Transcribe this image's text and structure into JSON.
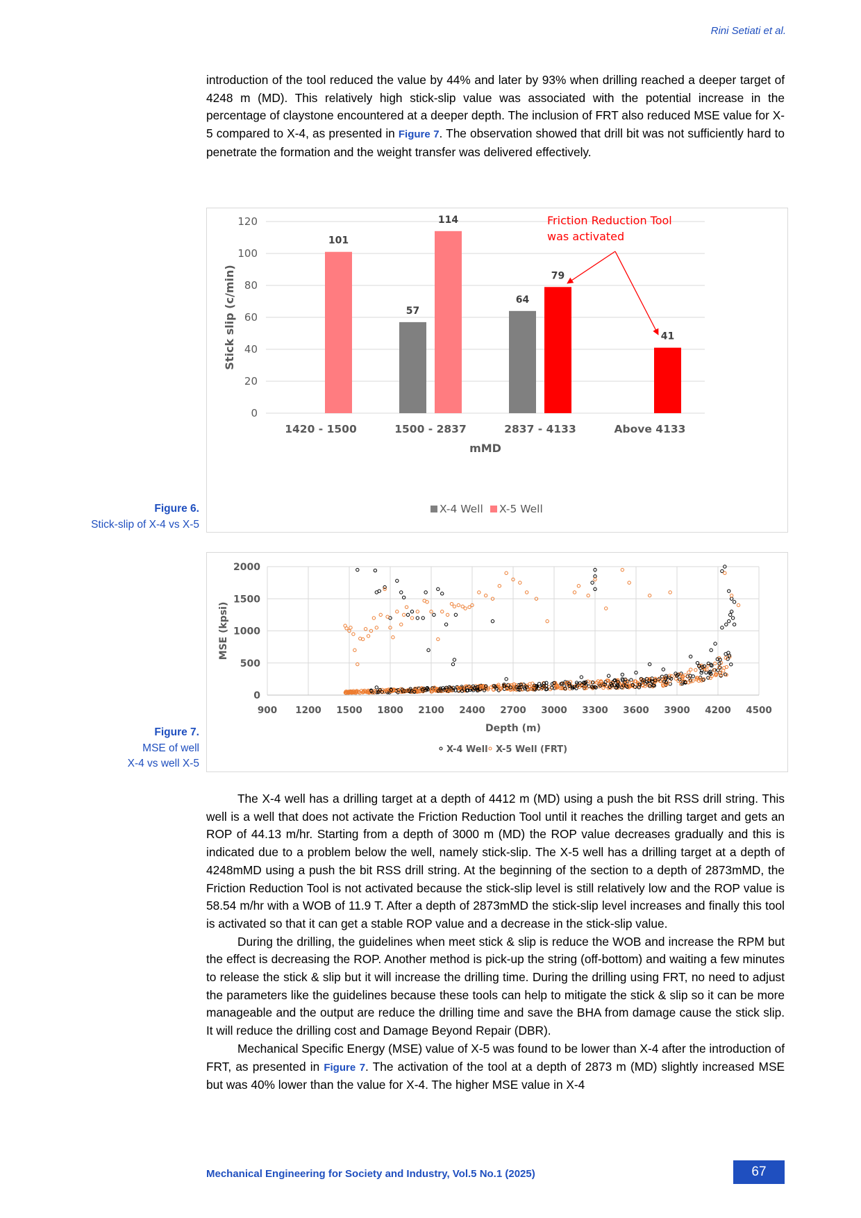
{
  "header": {
    "author": "Rini Setiati et al."
  },
  "paragraphs_top": [
    "introduction of the tool reduced the value by 44% and later by 93% when drilling reached a deeper target of 4248 m (MD). This relatively high stick-slip value was associated with the potential increase in the percentage of claystone encountered at a deeper depth. The inclusion of FRT also reduced MSE value for X-5 compared to X-4, as presented in ",
    "Figure 7",
    ". The observation showed that drill bit was not sufficiently hard to penetrate the formation and the weight transfer was delivered effectively."
  ],
  "figure6": {
    "caption_num": "Figure 6.",
    "caption_text": "Stick-slip of X-4 vs X-5"
  },
  "figure7": {
    "caption_num": "Figure 7.",
    "caption_line1": "MSE of well",
    "caption_line2": "X-4 vs well X-5"
  },
  "paragraph_x4": "The X-4 well has a drilling target at a depth of 4412 m (MD) using a push the bit RSS drill string. This well is a well that does not activate the Friction Reduction Tool until it reaches the drilling target and gets an ROP of 44.13 m/hr. Starting from a depth of 3000 m (MD) the ROP value decreases gradually and this is indicated due to a problem below the well, namely stick-slip. The X-5 well has a drilling target at a depth of 4248mMD using a push the bit RSS drill string. At the beginning of the section to a depth of 2873mMD, the Friction Reduction Tool is not activated because the stick-slip level is still relatively low and the ROP value is 58.54 m/hr with a WOB of 11.9 T. After a depth of 2873mMD the stick-slip level increases and finally this tool is activated so that it can get a stable ROP value and a decrease in the stick-slip value.",
  "paragraph_guidelines": "During the drilling, the guidelines when meet stick & slip is reduce the WOB and increase the RPM but the effect is decreasing the ROP. Another method is pick-up the string (off-bottom) and waiting a few minutes to release the stick & slip but it will increase the drilling time. During the drilling using FRT, no need to adjust the parameters like the guidelines because these tools can help to mitigate the stick & slip so it can be more manageable and the output are reduce the drilling time and save the BHA from damage cause the stick slip. It will reduce the drilling cost and Damage Beyond Repair (DBR).",
  "paragraph_mse_a": "Mechanical Specific Energy (MSE) value of X-5 was found to be lower than X-4 after the introduction of FRT, as presented in ",
  "paragraph_mse_ref": "Figure 7",
  "paragraph_mse_b": ". The activation of the tool at a depth of 2873 m (MD) slightly increased MSE but was 40% lower than the value for X-4. The higher MSE value in X-4",
  "footer": {
    "journal": "Mechanical Engineering for Society and Industry, Vol.5 No.1 (2025)",
    "page": "67"
  },
  "chart_data": [
    {
      "type": "bar",
      "ylabel": "Stick slip (c/min)",
      "xlabel": "mMD",
      "ylim": [
        0,
        120
      ],
      "yticks": [
        0,
        20,
        40,
        60,
        80,
        100,
        120
      ],
      "categories": [
        "1420 - 1500",
        "1500 - 2837",
        "2837 - 4133",
        "Above 4133"
      ],
      "series": [
        {
          "name": "X-4 Well",
          "values": [
            null,
            57,
            64,
            null
          ],
          "color": "#808080"
        },
        {
          "name": "X-5 Well",
          "values": [
            101,
            114,
            79,
            41
          ],
          "color": "#ff7c80",
          "activated_color": "#ff0000"
        }
      ],
      "activated": [
        false,
        false,
        true,
        true
      ],
      "annotation": "Friction Reduction Tool was activated",
      "annotation_lines": [
        "Friction Reduction Tool",
        "was activated"
      ],
      "legend": "bottom",
      "grid": true
    },
    {
      "type": "scatter",
      "ylabel": "MSE (kpsi)",
      "xlabel": "Depth (m)",
      "xlim": [
        900,
        4500
      ],
      "ylim": [
        0,
        2000
      ],
      "xticks": [
        900,
        1200,
        1500,
        1800,
        2100,
        2400,
        2700,
        3000,
        3300,
        3600,
        3900,
        4200,
        4500
      ],
      "yticks": [
        0,
        500,
        1000,
        1500,
        2000
      ],
      "series": [
        {
          "name": "X-4 Well",
          "color": "#000000",
          "points": [
            [
              1560,
              1950
            ],
            [
              1690,
              1940
            ],
            [
              1700,
              1600
            ],
            [
              1720,
              1620
            ],
            [
              1760,
              1680
            ],
            [
              1800,
              1200
            ],
            [
              1850,
              1780
            ],
            [
              1880,
              1600
            ],
            [
              1900,
              1520
            ],
            [
              1930,
              1250
            ],
            [
              1960,
              1300
            ],
            [
              2000,
              1200
            ],
            [
              2040,
              1200
            ],
            [
              2060,
              1600
            ],
            [
              2080,
              700
            ],
            [
              2120,
              1250
            ],
            [
              2150,
              1650
            ],
            [
              2180,
              1580
            ],
            [
              2210,
              1100
            ],
            [
              2270,
              550
            ],
            [
              2260,
              480
            ],
            [
              2280,
              1250
            ],
            [
              2550,
              1150
            ],
            [
              2650,
              250
            ],
            [
              3300,
              1850
            ],
            [
              3300,
              1950
            ],
            [
              3280,
              1750
            ],
            [
              3300,
              1650
            ],
            [
              3700,
              480
            ],
            [
              4230,
              1930
            ],
            [
              4250,
              2000
            ],
            [
              4280,
              1620
            ],
            [
              4300,
              1500
            ],
            [
              4320,
              1450
            ],
            [
              4000,
              600
            ],
            [
              4050,
              500
            ],
            [
              4100,
              450
            ],
            [
              3200,
              280
            ],
            [
              3400,
              300
            ],
            [
              3500,
              320
            ],
            [
              3600,
              350
            ],
            [
              3800,
              400
            ],
            [
              4150,
              700
            ],
            [
              4180,
              800
            ],
            [
              4230,
              1050
            ],
            [
              4260,
              1100
            ],
            [
              4280,
              1150
            ],
            [
              4290,
              1250
            ],
            [
              4300,
              1300
            ],
            [
              4310,
              1200
            ],
            [
              4320,
              1100
            ],
            [
              1700,
              120
            ],
            [
              2500,
              140
            ],
            [
              3000,
              190
            ],
            [
              3500,
              250
            ],
            [
              3900,
              300
            ]
          ]
        },
        {
          "name": "X-5 Well (FRT)",
          "color": "#ed7d31",
          "points": [
            [
              1470,
              1080
            ],
            [
              1480,
              1040
            ],
            [
              1500,
              1000
            ],
            [
              1510,
              1050
            ],
            [
              1530,
              950
            ],
            [
              1540,
              700
            ],
            [
              1560,
              480
            ],
            [
              1580,
              880
            ],
            [
              1600,
              870
            ],
            [
              1620,
              1030
            ],
            [
              1640,
              920
            ],
            [
              1660,
              1000
            ],
            [
              1680,
              1200
            ],
            [
              1700,
              1050
            ],
            [
              1730,
              1250
            ],
            [
              1760,
              1650
            ],
            [
              1780,
              1220
            ],
            [
              1800,
              1050
            ],
            [
              1820,
              900
            ],
            [
              1850,
              1300
            ],
            [
              1880,
              1100
            ],
            [
              1900,
              1250
            ],
            [
              1920,
              1370
            ],
            [
              1960,
              1200
            ],
            [
              2000,
              1300
            ],
            [
              2050,
              1470
            ],
            [
              2070,
              1450
            ],
            [
              2100,
              1300
            ],
            [
              2150,
              870
            ],
            [
              2180,
              1300
            ],
            [
              2220,
              1250
            ],
            [
              2250,
              1420
            ],
            [
              2270,
              1380
            ],
            [
              2300,
              1400
            ],
            [
              2330,
              1380
            ],
            [
              2350,
              1350
            ],
            [
              2380,
              1370
            ],
            [
              2400,
              1400
            ],
            [
              2450,
              1600
            ],
            [
              2500,
              1550
            ],
            [
              2550,
              1500
            ],
            [
              2600,
              1700
            ],
            [
              2650,
              1900
            ],
            [
              2700,
              1800
            ],
            [
              2750,
              1750
            ],
            [
              2800,
              1600
            ],
            [
              2870,
              1500
            ],
            [
              2950,
              1150
            ],
            [
              3150,
              1600
            ],
            [
              3180,
              1700
            ],
            [
              3250,
              1550
            ],
            [
              3300,
              1800
            ],
            [
              3380,
              1350
            ],
            [
              3500,
              1950
            ],
            [
              3550,
              1750
            ],
            [
              3700,
              1550
            ],
            [
              3850,
              1600
            ],
            [
              4250,
              1900
            ],
            [
              4300,
              1550
            ],
            [
              4350,
              1400
            ]
          ]
        }
      ],
      "legend": "bottom",
      "grid": true
    }
  ]
}
